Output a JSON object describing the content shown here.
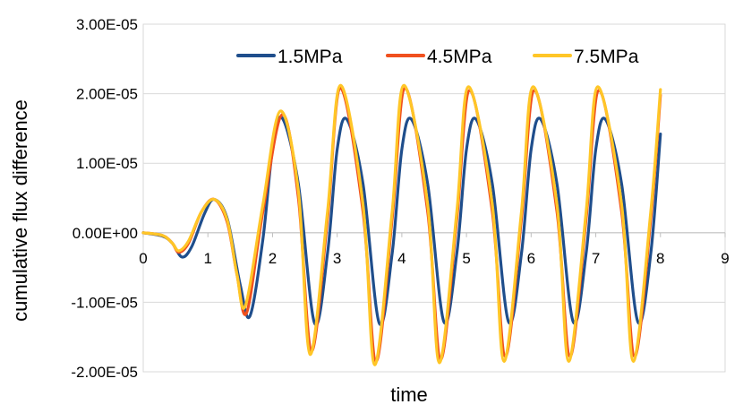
{
  "chart_data": {
    "type": "line",
    "title": "",
    "xlabel": "time",
    "ylabel": "cumulative flux difference",
    "xlim": [
      0,
      9
    ],
    "ylim": [
      -2e-05,
      3e-05
    ],
    "x_ticks": [
      {
        "value": 0,
        "label": "0"
      },
      {
        "value": 1,
        "label": "1"
      },
      {
        "value": 2,
        "label": "2"
      },
      {
        "value": 3,
        "label": "3"
      },
      {
        "value": 4,
        "label": "4"
      },
      {
        "value": 5,
        "label": "5"
      },
      {
        "value": 6,
        "label": "6"
      },
      {
        "value": 7,
        "label": "7"
      },
      {
        "value": 8,
        "label": "8"
      },
      {
        "value": 9,
        "label": "9"
      }
    ],
    "y_ticks": [
      {
        "value": 3e-05,
        "label": "3.00E-05"
      },
      {
        "value": 2e-05,
        "label": "2.00E-05"
      },
      {
        "value": 1e-05,
        "label": "1.00E-05"
      },
      {
        "value": 0,
        "label": "0.00E+00"
      },
      {
        "value": -1e-05,
        "label": "-1.00E-05"
      },
      {
        "value": -2e-05,
        "label": "-2.00E-05"
      }
    ],
    "grid": {
      "horizontal": true,
      "vertical": false
    },
    "legend_position": "top",
    "series": [
      {
        "name": "1.5MPa",
        "color": "#1f4e8c",
        "x": [
          0,
          0.3,
          0.45,
          0.6,
          0.75,
          0.95,
          1.1,
          1.3,
          1.5,
          1.65,
          1.85,
          2.0,
          2.15,
          2.4,
          2.65,
          2.85,
          3.0,
          3.15,
          3.4,
          3.65,
          3.85,
          4.0,
          4.15,
          4.4,
          4.65,
          4.85,
          5.0,
          5.15,
          5.4,
          5.65,
          5.85,
          6.0,
          6.15,
          6.4,
          6.65,
          6.85,
          7.0,
          7.15,
          7.4,
          7.65,
          7.85,
          8.0
        ],
        "y": [
          0,
          -5e-07,
          -1.5e-06,
          -3.5e-06,
          -2e-06,
          2.8e-06,
          4.8e-06,
          2e-06,
          -7.5e-06,
          -1.2e-05,
          -1e-06,
          1.2e-05,
          1.65e-05,
          7e-06,
          -1.3e-05,
          -3e-06,
          1.2e-05,
          1.63e-05,
          7e-06,
          -1.3e-05,
          -3e-06,
          1.2e-05,
          1.63e-05,
          7e-06,
          -1.28e-05,
          -3e-06,
          1.2e-05,
          1.63e-05,
          7e-06,
          -1.28e-05,
          -3e-06,
          1.2e-05,
          1.63e-05,
          7e-06,
          -1.28e-05,
          -3e-06,
          1.2e-05,
          1.63e-05,
          7e-06,
          -1.28e-05,
          -3e-06,
          1.42e-05
        ]
      },
      {
        "name": "4.5MPa",
        "color": "#f0501e",
        "x": [
          0,
          0.3,
          0.45,
          0.55,
          0.7,
          0.9,
          1.1,
          1.3,
          1.45,
          1.6,
          1.85,
          2.15,
          2.4,
          2.6,
          2.85,
          3.05,
          3.4,
          3.6,
          3.85,
          4.05,
          4.4,
          4.6,
          4.85,
          5.05,
          5.4,
          5.6,
          5.85,
          6.05,
          6.4,
          6.6,
          6.85,
          7.05,
          7.4,
          7.6,
          7.85,
          8.0
        ],
        "y": [
          0,
          -4e-07,
          -1.5e-06,
          -2.8e-06,
          -1.5e-06,
          3e-06,
          4.8e-06,
          1.5e-06,
          -6e-06,
          -1.15e-05,
          3e-06,
          1.7e-05,
          5e-06,
          -1.7e-05,
          2e-06,
          2.08e-05,
          3e-06,
          -1.85e-05,
          2e-06,
          2.08e-05,
          3e-06,
          -1.82e-05,
          2e-06,
          2.05e-05,
          3e-06,
          -1.78e-05,
          2e-06,
          2.05e-05,
          3e-06,
          -1.78e-05,
          2e-06,
          2.05e-05,
          3e-06,
          -1.78e-05,
          2e-06,
          1.98e-05
        ]
      },
      {
        "name": "7.5MPa",
        "color": "#ffc627",
        "x": [
          0,
          0.3,
          0.45,
          0.55,
          0.7,
          0.9,
          1.1,
          1.3,
          1.45,
          1.58,
          1.85,
          2.12,
          2.4,
          2.58,
          2.85,
          3.05,
          3.4,
          3.58,
          3.85,
          4.03,
          4.4,
          4.58,
          4.85,
          5.03,
          5.4,
          5.58,
          5.85,
          6.03,
          6.4,
          6.58,
          6.85,
          7.03,
          7.4,
          7.58,
          7.85,
          8.0
        ],
        "y": [
          0,
          -4e-07,
          -1.5e-06,
          -2.6e-06,
          -1.2e-06,
          3e-06,
          4.8e-06,
          1.8e-06,
          -6e-06,
          -1.05e-05,
          4e-06,
          1.75e-05,
          6e-06,
          -1.75e-05,
          3e-06,
          2.12e-05,
          4e-06,
          -1.9e-05,
          3e-06,
          2.12e-05,
          4e-06,
          -1.87e-05,
          3e-06,
          2.1e-05,
          4e-06,
          -1.85e-05,
          3e-06,
          2.1e-05,
          4e-06,
          -1.85e-05,
          3e-06,
          2.1e-05,
          4e-06,
          -1.85e-05,
          3e-06,
          2.06e-05
        ]
      }
    ]
  }
}
